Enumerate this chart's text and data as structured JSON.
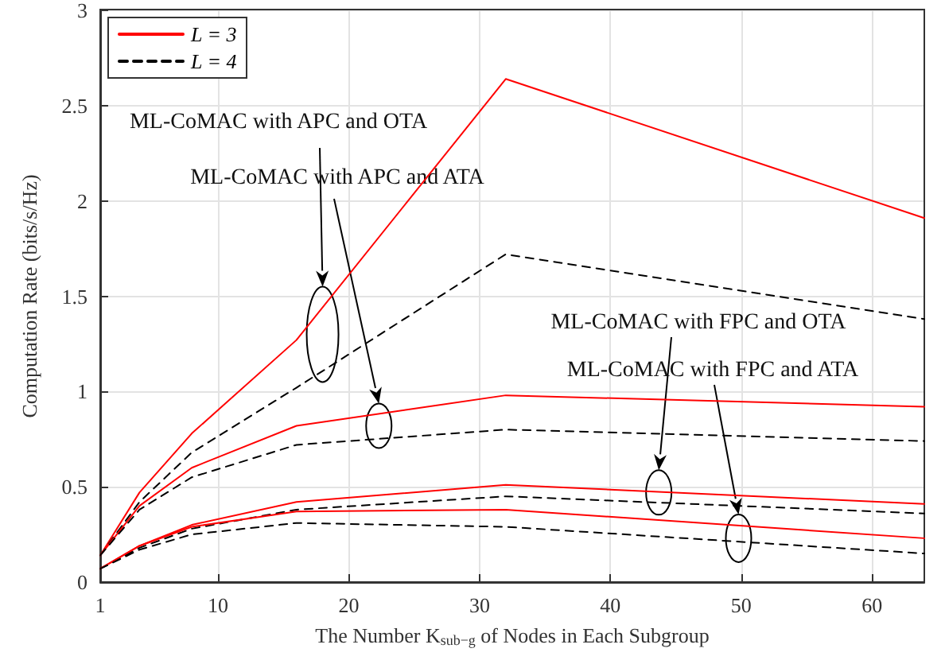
{
  "chart_data": {
    "type": "line",
    "xlabel": "The Number K$_{sub−g}$ of Nodes in Each Subgroup",
    "ylabel": "Computation Rate (bits/s/Hz)",
    "x": [
      1,
      4,
      8,
      16,
      32,
      64
    ],
    "series": [
      {
        "name": "L = 3",
        "color": "#ff0000",
        "line_style": "solid",
        "values": [
          0.14,
          0.47,
          0.78,
          1.27,
          2.64,
          1.91
        ]
      },
      {
        "name": "L = 4",
        "color": "#000000",
        "line_style": "dashed",
        "values": [
          0.14,
          0.42,
          0.68,
          1.02,
          1.72,
          1.38
        ]
      },
      {
        "color": "#ff0000",
        "line_style": "solid",
        "values": [
          0.14,
          0.4,
          0.6,
          0.82,
          0.98,
          0.92
        ]
      },
      {
        "color": "#000000",
        "line_style": "dashed",
        "values": [
          0.14,
          0.38,
          0.55,
          0.72,
          0.8,
          0.74
        ]
      },
      {
        "color": "#ff0000",
        "line_style": "solid",
        "values": [
          0.07,
          0.19,
          0.3,
          0.42,
          0.51,
          0.41
        ]
      },
      {
        "color": "#000000",
        "line_style": "dashed",
        "values": [
          0.07,
          0.18,
          0.28,
          0.38,
          0.45,
          0.36
        ]
      },
      {
        "color": "#ff0000",
        "line_style": "solid",
        "values": [
          0.07,
          0.19,
          0.29,
          0.37,
          0.38,
          0.23
        ]
      },
      {
        "color": "#000000",
        "line_style": "dashed",
        "values": [
          0.07,
          0.17,
          0.25,
          0.31,
          0.29,
          0.15
        ]
      }
    ],
    "xlim": [
      1,
      64
    ],
    "xticks": [
      1,
      10,
      20,
      30,
      40,
      50,
      60
    ],
    "ylim": [
      0,
      3
    ],
    "yticks": [
      0,
      0.5,
      1,
      1.5,
      2,
      2.5,
      3
    ],
    "grid": true,
    "legend": "top left",
    "marker": "none",
    "annotations": [
      "ML-CoMAC with APC and OTA",
      "ML-CoMAC with APC and ATA",
      "ML-CoMAC with FPC and OTA",
      "ML-CoMAC with FPC and ATA"
    ]
  }
}
